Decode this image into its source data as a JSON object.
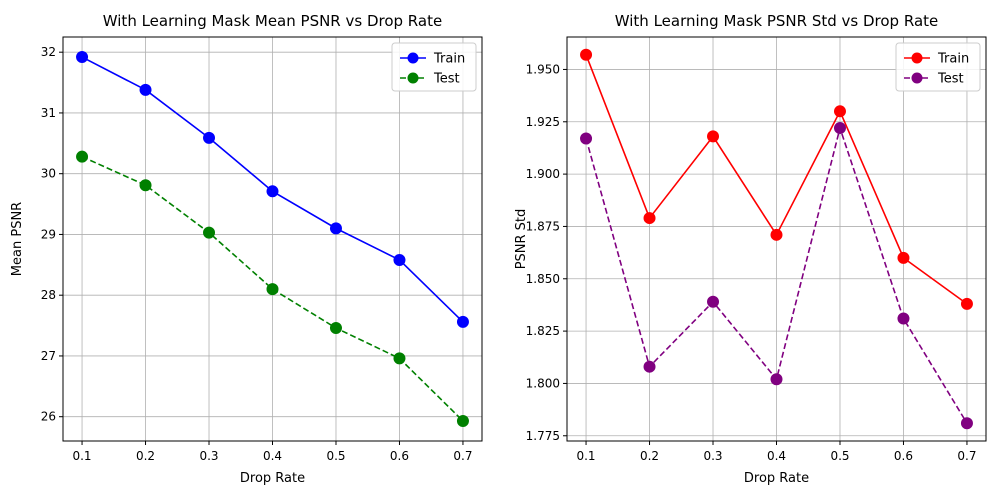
{
  "chart_data": [
    {
      "type": "line",
      "title": "With Learning Mask Mean PSNR vs Drop Rate",
      "xlabel": "Drop Rate",
      "ylabel": "Mean PSNR",
      "x": [
        0.1,
        0.2,
        0.3,
        0.4,
        0.5,
        0.6,
        0.7
      ],
      "x_ticks": [
        "0.1",
        "0.2",
        "0.3",
        "0.4",
        "0.5",
        "0.6",
        "0.7"
      ],
      "y_ticks": [
        "26",
        "27",
        "28",
        "29",
        "30",
        "31",
        "32"
      ],
      "y_tick_values": [
        26,
        27,
        28,
        29,
        30,
        31,
        32
      ],
      "xlim": [
        0.07,
        0.73
      ],
      "ylim": [
        25.6,
        32.25
      ],
      "grid": true,
      "legend_position": "top-right",
      "series": [
        {
          "name": "Train",
          "values": [
            31.92,
            31.38,
            30.59,
            29.71,
            29.1,
            28.58,
            27.56
          ],
          "color": "#0000ff",
          "line_style": "solid",
          "marker": "circle"
        },
        {
          "name": "Test",
          "values": [
            30.28,
            29.81,
            29.03,
            28.1,
            27.46,
            26.96,
            25.93
          ],
          "color": "#008000",
          "line_style": "dashed",
          "marker": "circle"
        }
      ]
    },
    {
      "type": "line",
      "title": "With Learning Mask PSNR Std vs Drop Rate",
      "xlabel": "Drop Rate",
      "ylabel": "PSNR Std",
      "x": [
        0.1,
        0.2,
        0.3,
        0.4,
        0.5,
        0.6,
        0.7
      ],
      "x_ticks": [
        "0.1",
        "0.2",
        "0.3",
        "0.4",
        "0.5",
        "0.6",
        "0.7"
      ],
      "y_ticks": [
        "1.775",
        "1.800",
        "1.825",
        "1.850",
        "1.875",
        "1.900",
        "1.925",
        "1.950"
      ],
      "y_tick_values": [
        1.775,
        1.8,
        1.825,
        1.85,
        1.875,
        1.9,
        1.925,
        1.95
      ],
      "xlim": [
        0.07,
        0.73
      ],
      "ylim": [
        1.7725,
        1.9655
      ],
      "grid": true,
      "legend_position": "top-right",
      "series": [
        {
          "name": "Train",
          "values": [
            1.957,
            1.879,
            1.918,
            1.871,
            1.93,
            1.86,
            1.838
          ],
          "color": "#ff0000",
          "line_style": "solid",
          "marker": "circle"
        },
        {
          "name": "Test",
          "values": [
            1.917,
            1.808,
            1.839,
            1.802,
            1.922,
            1.831,
            1.781
          ],
          "color": "#800080",
          "line_style": "dashed",
          "marker": "circle"
        }
      ]
    }
  ]
}
